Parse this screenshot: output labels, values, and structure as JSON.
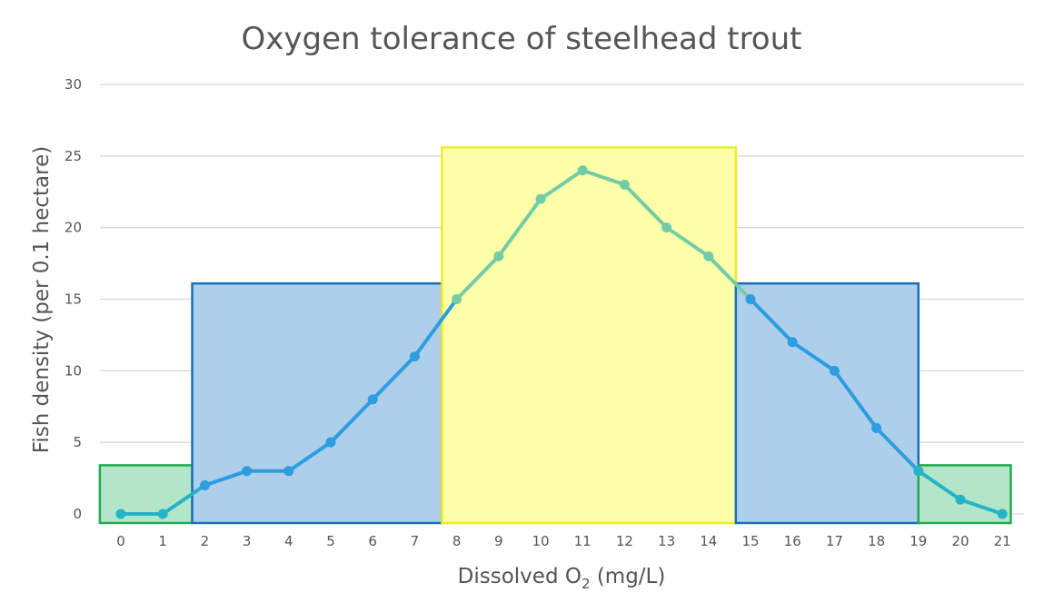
{
  "chart_data": {
    "type": "line",
    "title": "Oxygen tolerance of steelhead trout",
    "xlabel_main": "Dissolved O",
    "xlabel_sub": "2",
    "xlabel_unit": " (mg/L)",
    "ylabel": "Fish density (per 0.1 hectare)",
    "ylim": [
      0,
      30
    ],
    "yticks": [
      0,
      5,
      10,
      15,
      20,
      25,
      30
    ],
    "x": [
      0,
      1,
      2,
      3,
      4,
      5,
      6,
      7,
      8,
      9,
      10,
      11,
      12,
      13,
      14,
      15,
      16,
      17,
      18,
      19,
      20,
      21
    ],
    "xtick_labels": [
      "0",
      "1",
      "2",
      "3",
      "4",
      "5",
      "6",
      "7",
      "8",
      "9",
      "10",
      "11",
      "12",
      "13",
      "14",
      "15",
      "16",
      "17",
      "18",
      "19",
      "20",
      "21"
    ],
    "grid": true,
    "series": [
      {
        "name": "Fish density",
        "values": [
          0,
          0,
          2,
          3,
          3,
          5,
          8,
          11,
          15,
          18,
          22,
          24,
          23,
          20,
          18,
          15,
          12,
          10,
          6,
          3,
          1,
          0
        ]
      }
    ],
    "regions": [
      {
        "name": "low-tolerance-left",
        "x_from": -0.5,
        "x_to": 1.7,
        "height": 3.4,
        "fill": "#b3e6c8",
        "stroke": "#22aa55"
      },
      {
        "name": "mid-tolerance-left",
        "x_from": 1.7,
        "x_to": 7.65,
        "height": 16.1,
        "fill": "#aecfea",
        "stroke": "#1a6fba"
      },
      {
        "name": "optimal",
        "x_from": 7.65,
        "x_to": 14.65,
        "height": 25.6,
        "fill": "#ffffaa",
        "stroke": "#eeee22"
      },
      {
        "name": "mid-tolerance-right",
        "x_from": 14.65,
        "x_to": 19.0,
        "height": 16.1,
        "fill": "#aecfea",
        "stroke": "#1a6fba"
      },
      {
        "name": "low-tolerance-right",
        "x_from": 19.0,
        "x_to": 21.2,
        "height": 3.4,
        "fill": "#b3e6c8",
        "stroke": "#22aa55"
      }
    ],
    "colors": {
      "line": "#2b9de0",
      "line_optimal": "#74cca6",
      "line_edge": "#24b3c8",
      "grid": "#d9d9d9"
    }
  }
}
